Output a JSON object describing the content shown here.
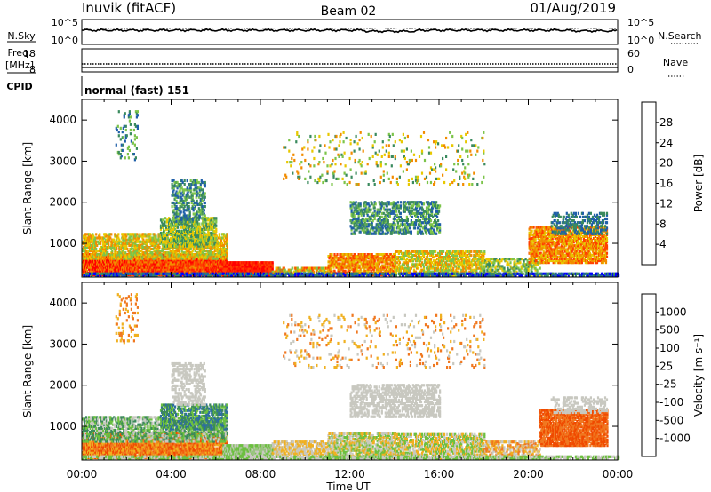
{
  "header": {
    "station": "Inuvik (fitACF)",
    "beam": "Beam 02",
    "date": "01/Aug/2019"
  },
  "top_panels": {
    "nsky_label": "N.Sky",
    "nsky_ticks": [
      "10^5",
      "10^0"
    ],
    "nsearch_label": "N.Search",
    "nsearch_ticks": [
      "10^5",
      "10^0"
    ],
    "freq_label_1": "Freq.",
    "freq_label_2": "[MHz]",
    "freq_ticks": [
      "18",
      "8"
    ],
    "nave_label": "Nave",
    "nave_ticks": [
      "60",
      "0"
    ],
    "cpid_label": "CPID",
    "cpid_value": "normal (fast) 151"
  },
  "chart_data": [
    {
      "type": "heatmap",
      "title": "",
      "ylabel": "Slant Range [km]",
      "xlabel": "",
      "ylim": [
        180,
        4500
      ],
      "yticks": [
        "1000",
        "2000",
        "3000",
        "4000"
      ],
      "colorbar_label": "Power [dB]",
      "colorbar_ticks": [
        "4",
        "8",
        "12",
        "16",
        "20",
        "24",
        "28"
      ],
      "colors": [
        "#0000ff",
        "#1f5fa8",
        "#3a8a5e",
        "#7cc44a",
        "#e8c800",
        "#f28c00",
        "#ff4000",
        "#ff0000"
      ]
    },
    {
      "type": "heatmap",
      "title": "",
      "ylabel": "Slant Range [km]",
      "xlabel": "Time UT",
      "ylim": [
        180,
        4500
      ],
      "yticks": [
        "1000",
        "2000",
        "3000",
        "4000"
      ],
      "xticks": [
        "00:00",
        "04:00",
        "08:00",
        "12:00",
        "16:00",
        "20:00",
        "00:00"
      ],
      "colorbar_label": "Velocity [m s⁻¹]",
      "colorbar_ticks": [
        "1000",
        "500",
        "100",
        "25",
        "-25",
        "-100",
        "-500",
        "-1000"
      ],
      "colors": [
        "#1030c0",
        "#2e6ea0",
        "#3c8a5a",
        "#6cc040",
        "#c8c8c0",
        "#f0b020",
        "#f07820",
        "#f04a00",
        "#ff0000"
      ]
    }
  ]
}
